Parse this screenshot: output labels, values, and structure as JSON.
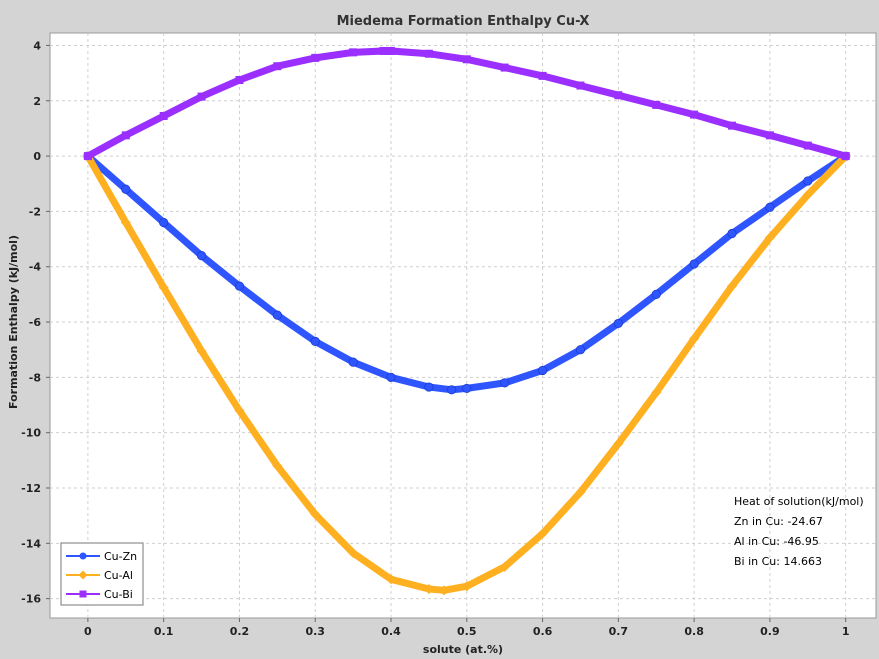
{
  "chart_data": {
    "type": "line",
    "title": "Miedema Formation Enthalpy Cu-X",
    "xlabel": "solute (at.%)",
    "ylabel": "Formation Enthalpy (kJ/mol)",
    "xlim": [
      -0.05,
      1.04
    ],
    "ylim": [
      -16.7,
      4.45
    ],
    "xticks": [
      "0",
      "0.1",
      "0.2",
      "0.3",
      "0.4",
      "0.5",
      "0.6",
      "0.7",
      "0.8",
      "0.9",
      "1"
    ],
    "yticks": [
      "4",
      "2",
      "0",
      "-2",
      "-4",
      "-6",
      "-8",
      "-10",
      "-12",
      "-14",
      "-16"
    ],
    "grid": true,
    "legend_position": "bottom-left",
    "series": [
      {
        "name": "Cu-Zn",
        "color": "#2f55ff",
        "marker": "circle",
        "x": [
          0,
          0.05,
          0.1,
          0.15,
          0.2,
          0.25,
          0.3,
          0.35,
          0.4,
          0.45,
          0.48,
          0.5,
          0.55,
          0.6,
          0.65,
          0.7,
          0.75,
          0.8,
          0.85,
          0.9,
          0.95,
          1
        ],
        "y": [
          0,
          -1.2,
          -2.4,
          -3.6,
          -4.7,
          -5.75,
          -6.7,
          -7.45,
          -8.0,
          -8.35,
          -8.45,
          -8.4,
          -8.2,
          -7.75,
          -7.0,
          -6.05,
          -5.0,
          -3.9,
          -2.8,
          -1.85,
          -0.9,
          0
        ]
      },
      {
        "name": "Cu-Al",
        "color": "#ffb020",
        "marker": "diamond",
        "x": [
          0,
          0.05,
          0.1,
          0.15,
          0.2,
          0.25,
          0.3,
          0.35,
          0.4,
          0.45,
          0.47,
          0.5,
          0.55,
          0.6,
          0.65,
          0.7,
          0.75,
          0.8,
          0.85,
          0.9,
          0.95,
          1
        ],
        "y": [
          0,
          -2.4,
          -4.75,
          -7.05,
          -9.2,
          -11.2,
          -12.95,
          -14.35,
          -15.3,
          -15.65,
          -15.7,
          -15.55,
          -14.85,
          -13.65,
          -12.15,
          -10.4,
          -8.55,
          -6.6,
          -4.7,
          -2.95,
          -1.4,
          0
        ]
      },
      {
        "name": "Cu-Bi",
        "color": "#9a2fff",
        "marker": "square",
        "x": [
          0,
          0.05,
          0.1,
          0.15,
          0.2,
          0.25,
          0.3,
          0.35,
          0.39,
          0.4,
          0.45,
          0.5,
          0.55,
          0.6,
          0.65,
          0.7,
          0.75,
          0.8,
          0.85,
          0.9,
          0.95,
          1
        ],
        "y": [
          0,
          0.75,
          1.45,
          2.15,
          2.75,
          3.25,
          3.55,
          3.75,
          3.8,
          3.8,
          3.7,
          3.5,
          3.2,
          2.9,
          2.55,
          2.2,
          1.85,
          1.5,
          1.1,
          0.75,
          0.38,
          0
        ]
      }
    ],
    "annotation": {
      "heading": "Heat of solution(kJ/mol)",
      "lines": [
        "Zn in Cu: -24.67",
        "Al in Cu: -46.95",
        "Bi in Cu: 14.663"
      ]
    }
  }
}
